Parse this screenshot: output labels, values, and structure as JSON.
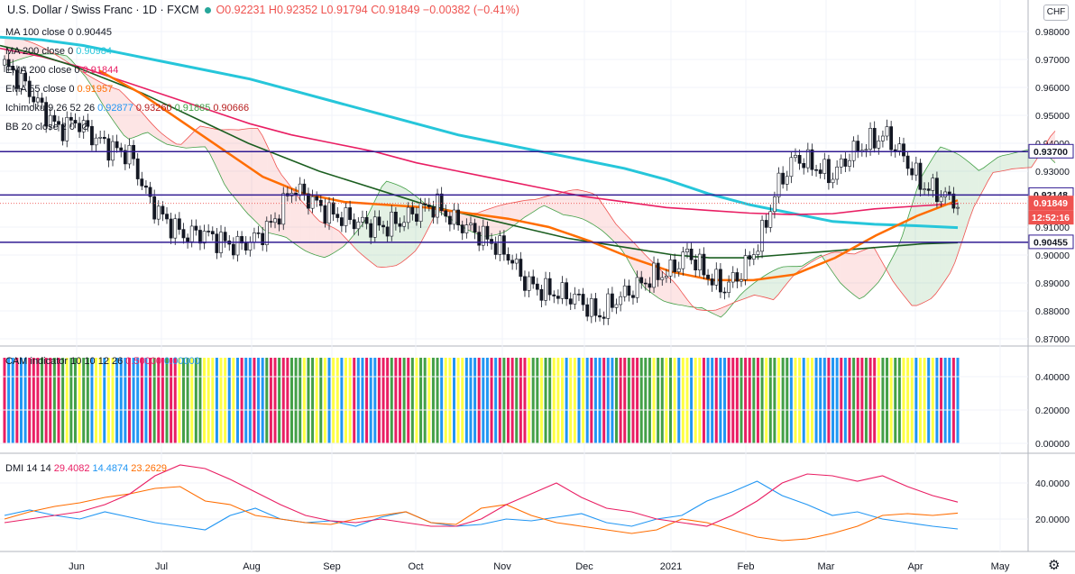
{
  "header": {
    "symbol": "U.S. Dollar / Swiss Franc · 1D · FXCM",
    "ohlc": "O0.92231 H0.92352 L0.91794 C0.91849 −0.00382 (−0.41%)"
  },
  "currency_button": "CHF",
  "indicators": [
    {
      "label": "MA 100 close 0",
      "values": [
        "0.90445"
      ],
      "colors": [
        "#131722"
      ]
    },
    {
      "label": "MA 200 close 0",
      "values": [
        "0.90984"
      ],
      "colors": [
        "#26c6da"
      ]
    },
    {
      "label": "EMA 200 close 0",
      "values": [
        "0.91844"
      ],
      "colors": [
        "#e91e63"
      ]
    },
    {
      "label": "EMA 55 close 0",
      "values": [
        "0.91957"
      ],
      "colors": [
        "#ff6d00"
      ]
    },
    {
      "label": "Ichimoku 9 26 52 26",
      "values": [
        "0.92877",
        "0.93260",
        "0.91885",
        "0.90666"
      ],
      "colors": [
        "#2196f3",
        "#b71c1c",
        "#43a047",
        "#b71c1c"
      ]
    },
    {
      "label": "BB 20 close 2 0",
      "values": [],
      "colors": []
    }
  ],
  "cam_legend": {
    "label": "CAM indicator 10 10 12 26",
    "values": [
      "0.50000",
      "0.00000"
    ],
    "colors": [
      "#e91e63",
      "#2196f3"
    ]
  },
  "dmi_legend": {
    "label": "DMI 14 14",
    "values": [
      "29.4082",
      "14.4874",
      "23.2629"
    ],
    "colors": [
      "#e91e63",
      "#2196f3",
      "#ff6d00"
    ]
  },
  "price_axis": {
    "ticks": [
      "0.98000",
      "0.97000",
      "0.96000",
      "0.95000",
      "0.94000",
      "0.93000",
      "0.92000",
      "0.91000",
      "0.90000",
      "0.89000",
      "0.88000",
      "0.87000"
    ],
    "top_partial": "0.98000"
  },
  "price_labels": [
    {
      "text": "0.93700",
      "value": 0.937,
      "bg": "#ffffff",
      "fg": "#131722",
      "border": "#311b92"
    },
    {
      "text": "0.92148",
      "value": 0.92148,
      "bg": "#ffffff",
      "fg": "#131722",
      "border": "#311b92"
    },
    {
      "text": "0.91849",
      "value": 0.91849,
      "bg": "#ef5350",
      "fg": "#ffffff"
    },
    {
      "text": "12:52:16",
      "value": 0.91849,
      "bg": "#ef5350",
      "fg": "#ffffff"
    },
    {
      "text": "0.90455",
      "value": 0.90455,
      "bg": "#ffffff",
      "fg": "#131722",
      "border": "#311b92"
    }
  ],
  "cam_axis": {
    "ticks": [
      "0.40000",
      "0.20000",
      "0.00000"
    ]
  },
  "dmi_axis": {
    "ticks": [
      "40.0000",
      "20.0000"
    ]
  },
  "time_axis": {
    "labels": [
      "Jun",
      "Jul",
      "Aug",
      "Sep",
      "Oct",
      "Nov",
      "Dec",
      "2021",
      "Feb",
      "Mar",
      "Apr",
      "May"
    ]
  },
  "colors": {
    "up": "#26a69a",
    "down": "#ef5350",
    "hline": "#311b92",
    "grid": "#f0f3fa",
    "cloud_bull": "#43a047",
    "cloud_bear": "#ef5350"
  },
  "chart_data": {
    "type": "candlestick",
    "title": "U.S. Dollar / Swiss Franc · 1D · FXCM",
    "horizontal_levels": [
      0.937,
      0.92148,
      0.90455
    ],
    "ylim": [
      0.865,
      0.985
    ],
    "x_labels": [
      "Jun",
      "Jul",
      "Aug",
      "Sep",
      "Oct",
      "Nov",
      "Dec",
      "2021",
      "Feb",
      "Mar",
      "Apr",
      "May"
    ],
    "close_path": [
      0.968,
      0.962,
      0.953,
      0.945,
      0.948,
      0.942,
      0.938,
      0.936,
      0.92,
      0.912,
      0.907,
      0.908,
      0.905,
      0.903,
      0.906,
      0.912,
      0.924,
      0.92,
      0.915,
      0.913,
      0.911,
      0.91,
      0.912,
      0.916,
      0.918,
      0.912,
      0.909,
      0.905,
      0.9,
      0.89,
      0.887,
      0.886,
      0.884,
      0.878,
      0.884,
      0.888,
      0.892,
      0.894,
      0.901,
      0.893,
      0.888,
      0.894,
      0.905,
      0.925,
      0.935,
      0.932,
      0.928,
      0.936,
      0.94,
      0.943,
      0.935,
      0.925,
      0.922,
      0.9185
    ],
    "ma100": [
      0.975,
      0.972,
      0.968,
      0.963,
      0.958,
      0.952,
      0.946,
      0.94,
      0.935,
      0.93,
      0.926,
      0.922,
      0.918,
      0.915,
      0.912,
      0.909,
      0.906,
      0.904,
      0.902,
      0.9,
      0.899,
      0.899,
      0.9,
      0.901,
      0.902,
      0.903,
      0.904,
      0.9044
    ],
    "ma200": [
      0.978,
      0.977,
      0.975,
      0.972,
      0.969,
      0.966,
      0.963,
      0.959,
      0.955,
      0.951,
      0.947,
      0.943,
      0.94,
      0.937,
      0.934,
      0.931,
      0.927,
      0.922,
      0.918,
      0.915,
      0.912,
      0.911,
      0.9105,
      0.9098
    ],
    "ema200": [
      0.974,
      0.971,
      0.967,
      0.962,
      0.957,
      0.952,
      0.947,
      0.943,
      0.94,
      0.937,
      0.933,
      0.93,
      0.927,
      0.924,
      0.921,
      0.919,
      0.917,
      0.916,
      0.915,
      0.9145,
      0.9148,
      0.9165,
      0.9175,
      0.9184
    ],
    "ema55": [
      0.966,
      0.958,
      0.948,
      0.938,
      0.928,
      0.922,
      0.919,
      0.918,
      0.917,
      0.915,
      0.913,
      0.91,
      0.905,
      0.899,
      0.894,
      0.891,
      0.891,
      0.893,
      0.899,
      0.907,
      0.914,
      0.9196
    ]
  },
  "cam_data": {
    "colors_pattern": [
      "#2196f3",
      "#e91e63",
      "#43a047",
      "#ffff44"
    ]
  },
  "dmi_data": {
    "plus_di": [
      22,
      25,
      22,
      20,
      24,
      21,
      18,
      16,
      14,
      22,
      26,
      20,
      18,
      19,
      16,
      21,
      24,
      18,
      16,
      17,
      20,
      19,
      21,
      23,
      18,
      16,
      20,
      22,
      30,
      35,
      41,
      33,
      28,
      22,
      24,
      20,
      18,
      16,
      14.5
    ],
    "minus_di": [
      20,
      24,
      27,
      29,
      32,
      34,
      37,
      38,
      30,
      28,
      22,
      20,
      18,
      17,
      20,
      22,
      24,
      18,
      17,
      26,
      28,
      22,
      18,
      16,
      14,
      12,
      14,
      20,
      18,
      14,
      10,
      8,
      9,
      12,
      16,
      22,
      23,
      22,
      23.3
    ],
    "adx": [
      18,
      20,
      22,
      24,
      28,
      34,
      44,
      50,
      48,
      42,
      35,
      28,
      22,
      19,
      18,
      20,
      18,
      16,
      16,
      20,
      28,
      34,
      40,
      32,
      26,
      24,
      20,
      18,
      16,
      22,
      30,
      40,
      45,
      44,
      41,
      44,
      38,
      33,
      29.4
    ]
  }
}
